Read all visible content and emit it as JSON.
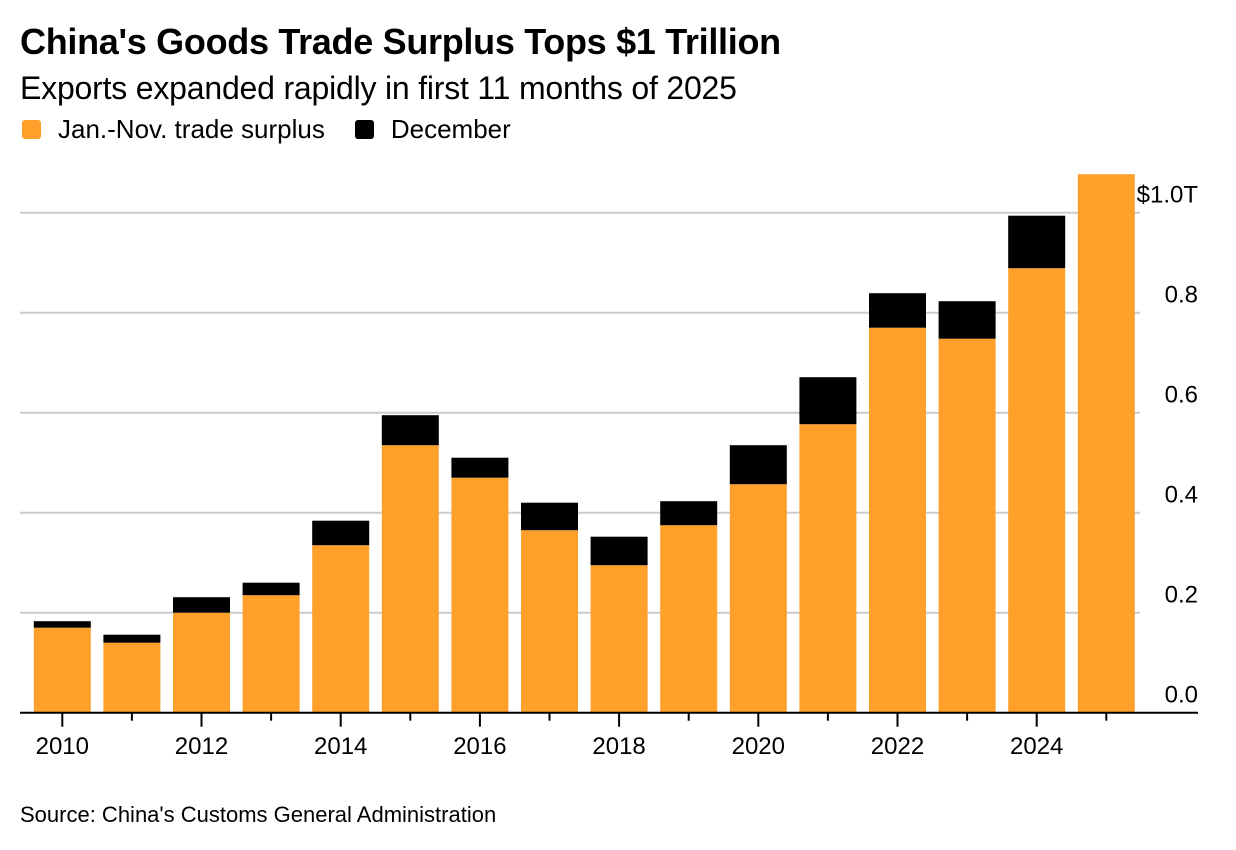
{
  "title": "China's Goods Trade Surplus Tops $1 Trillion",
  "subtitle": "Exports expanded rapidly in first 11 months of 2025",
  "source": "Source: China's Customs General Administration",
  "colors": {
    "jan_nov": "#FFA02B",
    "december": "#000000",
    "grid": "#CCCCCC",
    "axis": "#000000"
  },
  "legend": [
    {
      "label": "Jan.-Nov. trade surplus",
      "color": "#FFA02B"
    },
    {
      "label": "December",
      "color": "#000000"
    }
  ],
  "chart_data": {
    "type": "bar",
    "stacked": true,
    "title": "China's Goods Trade Surplus Tops $1 Trillion",
    "subtitle": "Exports expanded rapidly in first 11 months of 2025",
    "xlabel": "",
    "ylabel": "",
    "unit": "USD trillions",
    "categories": [
      "2010",
      "2011",
      "2012",
      "2013",
      "2014",
      "2015",
      "2016",
      "2017",
      "2018",
      "2019",
      "2020",
      "2021",
      "2022",
      "2023",
      "2024",
      "2025"
    ],
    "series": [
      {
        "name": "Jan.-Nov. trade surplus",
        "color": "#FFA02B",
        "values": [
          0.17,
          0.14,
          0.2,
          0.235,
          0.335,
          0.535,
          0.47,
          0.365,
          0.295,
          0.375,
          0.457,
          0.577,
          0.77,
          0.748,
          0.889,
          1.077
        ]
      },
      {
        "name": "December",
        "color": "#000000",
        "values": [
          0.013,
          0.016,
          0.031,
          0.025,
          0.049,
          0.06,
          0.04,
          0.055,
          0.057,
          0.048,
          0.078,
          0.094,
          0.069,
          0.075,
          0.105,
          null
        ]
      }
    ],
    "ylim": [
      0,
      1.0
    ],
    "yticks": [
      0.0,
      0.2,
      0.4,
      0.6,
      0.8,
      1.0
    ],
    "ytick_labels": [
      "0.0",
      "0.2",
      "0.4",
      "0.6",
      "0.8",
      "$1.0T"
    ],
    "xtick_labels": [
      "2010",
      "2012",
      "2014",
      "2016",
      "2018",
      "2020",
      "2022",
      "2024"
    ],
    "y_axis_side": "right",
    "grid": true,
    "legend_position": "top-left"
  }
}
